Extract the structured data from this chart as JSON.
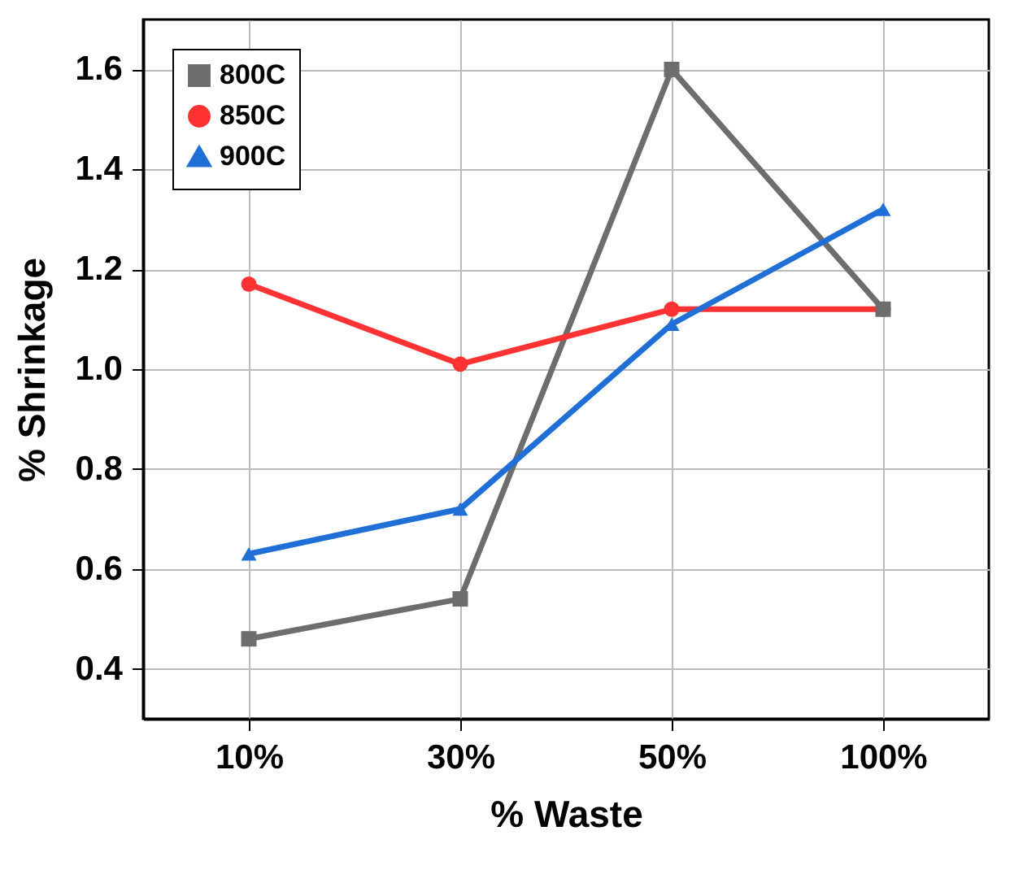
{
  "chart_data": {
    "type": "line",
    "xlabel": "% Waste",
    "ylabel": "% Shrinkage",
    "categories": [
      "10%",
      "30%",
      "50%",
      "100%"
    ],
    "series": [
      {
        "name": "800C",
        "color": "#6d6d6d",
        "marker": "square",
        "values": [
          0.46,
          0.54,
          1.6,
          1.12
        ]
      },
      {
        "name": "850C",
        "color": "#ff3333",
        "marker": "circle",
        "values": [
          1.17,
          1.01,
          1.12,
          1.12
        ]
      },
      {
        "name": "900C",
        "color": "#1f6fd6",
        "marker": "triangle",
        "values": [
          0.63,
          0.72,
          1.09,
          1.32
        ]
      }
    ],
    "ylim": [
      0.3,
      1.7
    ],
    "yticks": [
      {
        "value": 0.4,
        "label": "0.4"
      },
      {
        "value": 0.6,
        "label": "0.6"
      },
      {
        "value": 0.8,
        "label": "0.8"
      },
      {
        "value": 1.0,
        "label": "1.0"
      },
      {
        "value": 1.2,
        "label": "1.2"
      },
      {
        "value": 1.4,
        "label": "1.4"
      },
      {
        "value": 1.6,
        "label": "1.6"
      }
    ],
    "grid": true,
    "legend": "top left",
    "line_style": "solid"
  }
}
